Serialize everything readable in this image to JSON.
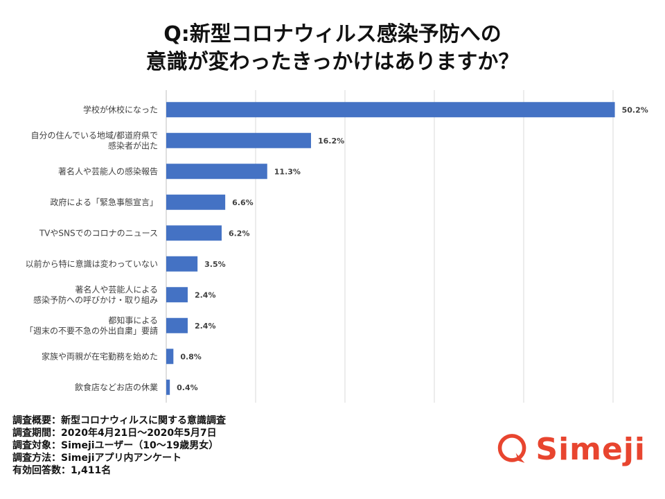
{
  "title_line1": "Q:新型コロナウィルス感染予防への",
  "title_line2": "意識が変わったきっかけはありますか？",
  "chart_data": {
    "type": "bar",
    "orientation": "horizontal",
    "categories": [
      [
        "学校が休校になった"
      ],
      [
        "自分の住んでいる地域/都道府県で",
        "感染者が出た"
      ],
      [
        "著名人や芸能人の感染報告"
      ],
      [
        "政府による「緊急事態宣言」"
      ],
      [
        "TVやSNSでのコロナのニュース"
      ],
      [
        "以前から特に意識は変わっていない"
      ],
      [
        "著名人や芸能人による",
        "感染予防への呼びかけ・取り組み"
      ],
      [
        "都知事による",
        "「週末の不要不急の外出自粛」要請"
      ],
      [
        "家族や両親が在宅勤務を始めた"
      ],
      [
        "飲食店などお店の休業"
      ]
    ],
    "values": [
      50.2,
      16.2,
      11.3,
      6.6,
      6.2,
      3.5,
      2.4,
      2.4,
      0.8,
      0.4
    ],
    "value_labels": [
      "50.2%",
      "16.2%",
      "11.3%",
      "6.6%",
      "6.2%",
      "3.5%",
      "2.4%",
      "2.4%",
      "0.8%",
      "0.4%"
    ],
    "xlim": [
      0,
      60
    ],
    "grid": true,
    "bar_color": "#4472c4"
  },
  "notes": [
    "調査概要：新型コロナウィルスに関する意識調査",
    "調査期間：2020年4月21日～2020年5月7日",
    "調査対象：Simejiユーザー（10～19歳男女）",
    "調査方法：Simejiアプリ内アンケート",
    "有効回答数：1,411名"
  ],
  "logo": {
    "text": "Simeji",
    "color": "#e8452f",
    "icon": "speech-bubble-q-icon"
  }
}
